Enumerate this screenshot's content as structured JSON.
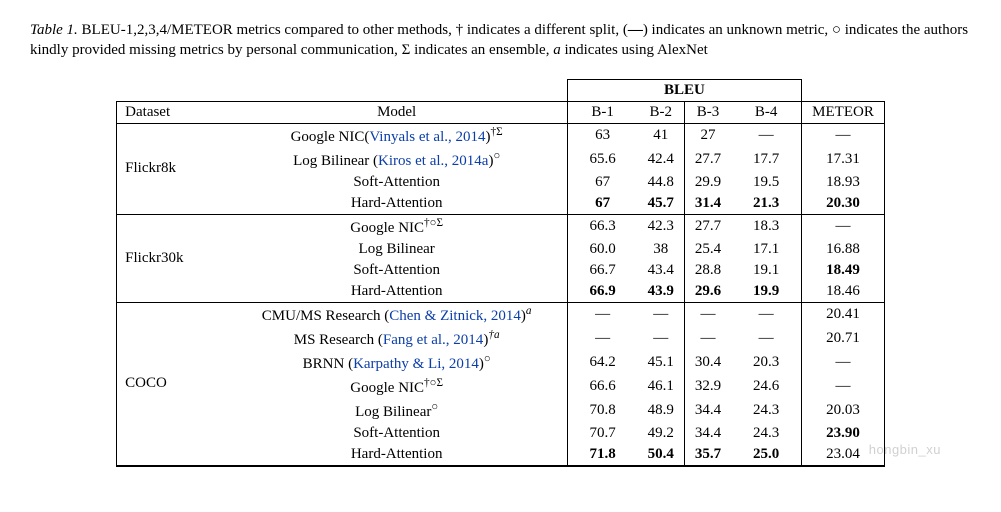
{
  "caption": {
    "label": "Table 1.",
    "text_before": " BLEU-1,2,3,4/METEOR metrics compared to other methods, † indicates a different split, (",
    "dash": "—",
    "text_mid": ") indicates an unknown metric, ○ indicates the authors kindly provided missing metrics by personal communication, Σ indicates an ensemble, ",
    "a_ital": "a",
    "text_after": " indicates using AlexNet"
  },
  "header": {
    "bleu_title": "BLEU",
    "dataset": "Dataset",
    "model": "Model",
    "b1": "B-1",
    "b2": "B-2",
    "b3": "B-3",
    "b4": "B-4",
    "meteor": "METEOR"
  },
  "style": {
    "cite_color": "#0b3ea9",
    "font_family": "Times New Roman",
    "fontsize_body": 15,
    "border_color": "#000",
    "bold_weight": "bold"
  },
  "datasets": [
    {
      "name": "Flickr8k",
      "rows": [
        {
          "model_pre": "Google NIC(",
          "cite": "Vinyals et al., 2014",
          "model_post": ")",
          "sup": "†Σ",
          "b1": "63",
          "b2": "41",
          "b3": "27",
          "b4": "—",
          "meteor": "—",
          "bold": []
        },
        {
          "model_pre": "Log Bilinear (",
          "cite": "Kiros et al., 2014a",
          "model_post": ")",
          "sup": "○",
          "b1": "65.6",
          "b2": "42.4",
          "b3": "27.7",
          "b4": "17.7",
          "meteor": "17.31",
          "bold": []
        },
        {
          "model_pre": "Soft-Attention",
          "cite": "",
          "model_post": "",
          "sup": "",
          "b1": "67",
          "b2": "44.8",
          "b3": "29.9",
          "b4": "19.5",
          "meteor": "18.93",
          "bold": []
        },
        {
          "model_pre": "Hard-Attention",
          "cite": "",
          "model_post": "",
          "sup": "",
          "b1": "67",
          "b2": "45.7",
          "b3": "31.4",
          "b4": "21.3",
          "meteor": "20.30",
          "bold": [
            "b1",
            "b2",
            "b3",
            "b4",
            "meteor"
          ]
        }
      ]
    },
    {
      "name": "Flickr30k",
      "rows": [
        {
          "model_pre": "Google NIC",
          "cite": "",
          "model_post": "",
          "sup": "†○Σ",
          "b1": "66.3",
          "b2": "42.3",
          "b3": "27.7",
          "b4": "18.3",
          "meteor": "—",
          "bold": []
        },
        {
          "model_pre": "Log Bilinear",
          "cite": "",
          "model_post": "",
          "sup": "",
          "b1": "60.0",
          "b2": "38",
          "b3": "25.4",
          "b4": "17.1",
          "meteor": "16.88",
          "bold": []
        },
        {
          "model_pre": "Soft-Attention",
          "cite": "",
          "model_post": "",
          "sup": "",
          "b1": "66.7",
          "b2": "43.4",
          "b3": "28.8",
          "b4": "19.1",
          "meteor": "18.49",
          "bold": [
            "meteor"
          ]
        },
        {
          "model_pre": "Hard-Attention",
          "cite": "",
          "model_post": "",
          "sup": "",
          "b1": "66.9",
          "b2": "43.9",
          "b3": "29.6",
          "b4": "19.9",
          "meteor": "18.46",
          "bold": [
            "b1",
            "b2",
            "b3",
            "b4"
          ]
        }
      ]
    },
    {
      "name": "COCO",
      "rows": [
        {
          "model_pre": "CMU/MS Research (",
          "cite": "Chen & Zitnick, 2014",
          "model_post": ")",
          "sup": "a",
          "sup_italic": true,
          "b1": "—",
          "b2": "—",
          "b3": "—",
          "b4": "—",
          "meteor": "20.41",
          "bold": []
        },
        {
          "model_pre": "MS Research (",
          "cite": "Fang et al., 2014",
          "model_post": ")",
          "sup": "†a",
          "sup_italic": true,
          "b1": "—",
          "b2": "—",
          "b3": "—",
          "b4": "—",
          "meteor": "20.71",
          "bold": []
        },
        {
          "model_pre": "BRNN (",
          "cite": "Karpathy & Li, 2014",
          "model_post": ")",
          "sup": "○",
          "b1": "64.2",
          "b2": "45.1",
          "b3": "30.4",
          "b4": "20.3",
          "meteor": "—",
          "bold": []
        },
        {
          "model_pre": "Google NIC",
          "cite": "",
          "model_post": "",
          "sup": "†○Σ",
          "b1": "66.6",
          "b2": "46.1",
          "b3": "32.9",
          "b4": "24.6",
          "meteor": "—",
          "bold": []
        },
        {
          "model_pre": "Log Bilinear",
          "cite": "",
          "model_post": "",
          "sup": "○",
          "b1": "70.8",
          "b2": "48.9",
          "b3": "34.4",
          "b4": "24.3",
          "meteor": "20.03",
          "bold": []
        },
        {
          "model_pre": "Soft-Attention",
          "cite": "",
          "model_post": "",
          "sup": "",
          "b1": "70.7",
          "b2": "49.2",
          "b3": "34.4",
          "b4": "24.3",
          "meteor": "23.90",
          "bold": [
            "meteor"
          ]
        },
        {
          "model_pre": "Hard-Attention",
          "cite": "",
          "model_post": "",
          "sup": "",
          "b1": "71.8",
          "b2": "50.4",
          "b3": "35.7",
          "b4": "25.0",
          "meteor": "23.04",
          "bold": [
            "b1",
            "b2",
            "b3",
            "b4"
          ]
        }
      ]
    }
  ],
  "watermark": "hongbin_xu"
}
